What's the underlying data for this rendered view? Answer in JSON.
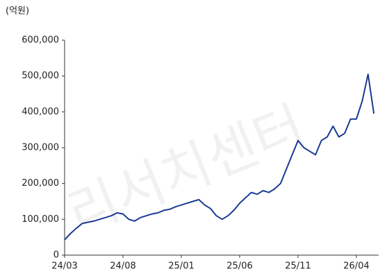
{
  "chart_data": {
    "type": "line",
    "unit_label": "(억원)",
    "watermark": "리서치센터",
    "categories": [
      "24/03",
      null,
      null,
      null,
      null,
      null,
      null,
      null,
      null,
      null,
      "24/08",
      null,
      null,
      null,
      null,
      null,
      null,
      null,
      null,
      null,
      "25/01",
      null,
      null,
      null,
      null,
      null,
      null,
      null,
      null,
      null,
      "25/06",
      null,
      null,
      null,
      null,
      null,
      null,
      null,
      null,
      null,
      "25/11",
      null,
      null,
      null,
      null,
      null,
      null,
      null,
      null,
      null,
      "26/04",
      null,
      null,
      null
    ],
    "series": [
      {
        "color": "#1a3a94",
        "values": [
          43000,
          60000,
          75000,
          88000,
          92000,
          95000,
          100000,
          105000,
          110000,
          118000,
          115000,
          100000,
          95000,
          105000,
          110000,
          115000,
          118000,
          125000,
          128000,
          135000,
          140000,
          145000,
          150000,
          155000,
          140000,
          130000,
          110000,
          100000,
          110000,
          125000,
          145000,
          160000,
          175000,
          170000,
          180000,
          175000,
          185000,
          200000,
          240000,
          280000,
          320000,
          300000,
          290000,
          280000,
          320000,
          330000,
          360000,
          330000,
          340000,
          380000,
          380000,
          430000,
          505000,
          395000
        ]
      }
    ],
    "ylim": [
      0,
      600000
    ],
    "yticks": [
      0,
      {
        "value": 100000,
        "label": "100,000"
      },
      {
        "value": 200000,
        "label": "200,000"
      },
      {
        "value": 300000,
        "label": "300,000"
      },
      {
        "value": 400000,
        "label": "400,000"
      },
      {
        "value": 500000,
        "label": "500,000"
      },
      {
        "value": 600000,
        "label": "600,000"
      }
    ]
  }
}
